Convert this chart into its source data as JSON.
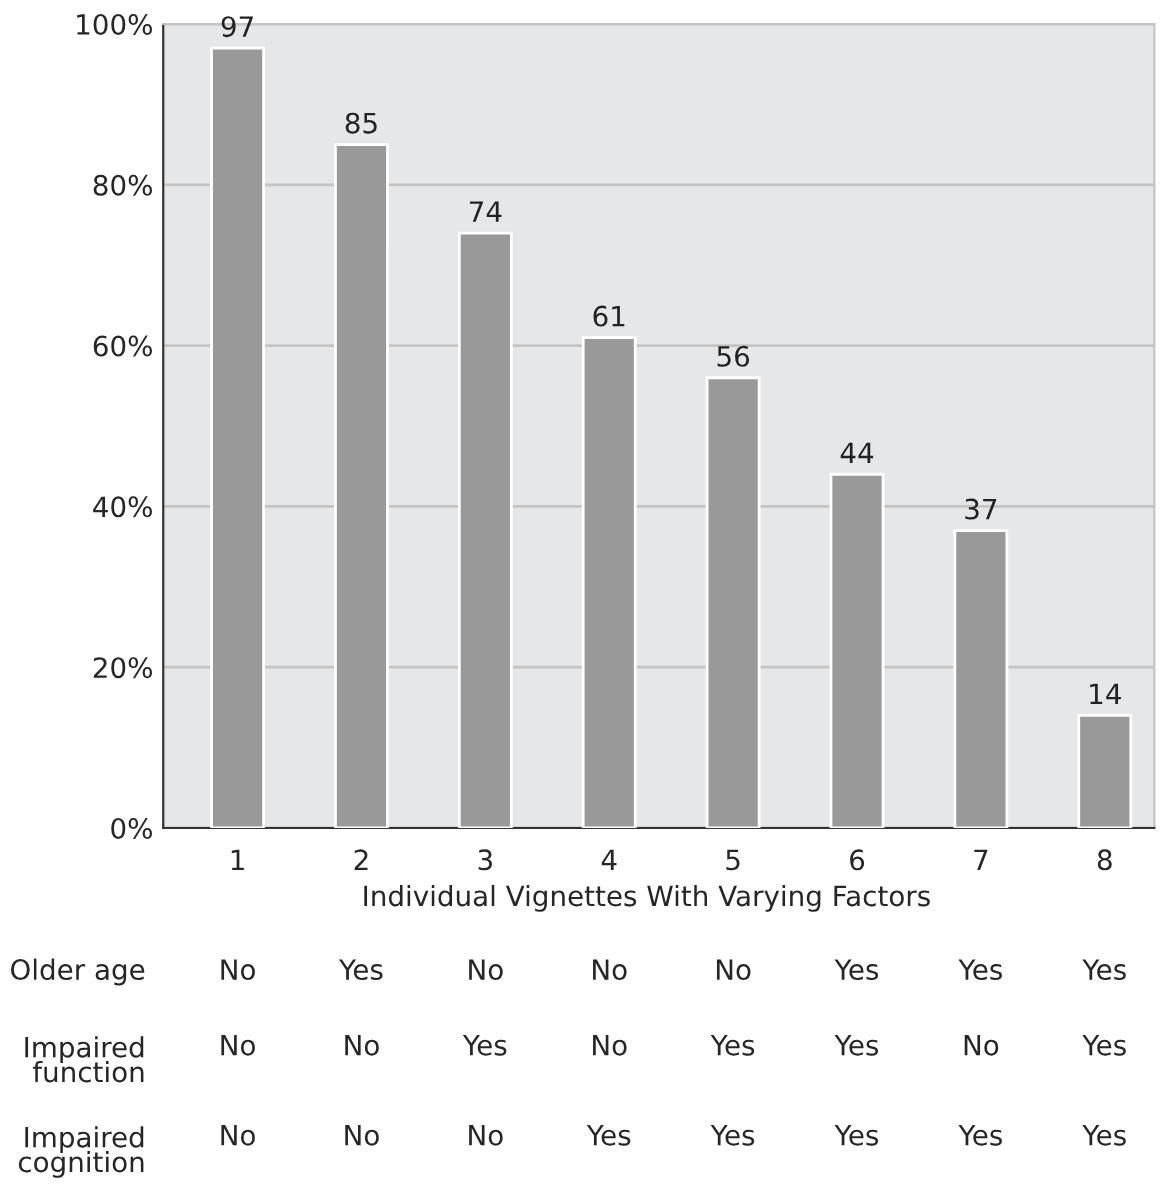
{
  "chart_data": {
    "type": "bar",
    "xlabel": "Individual Vignettes With Varying Factors",
    "categories": [
      "1",
      "2",
      "3",
      "4",
      "5",
      "6",
      "7",
      "8"
    ],
    "values": [
      97,
      85,
      74,
      61,
      56,
      44,
      37,
      14
    ],
    "color": "#999999",
    "data_labels": true,
    "ylim": [
      0,
      100
    ],
    "yticks": [
      {
        "value": 0,
        "label": "0%"
      },
      {
        "value": 20,
        "label": "20%"
      },
      {
        "value": 40,
        "label": "40%"
      },
      {
        "value": 60,
        "label": "60%"
      },
      {
        "value": 80,
        "label": "80%"
      },
      {
        "value": 100,
        "label": "100%"
      }
    ],
    "grid": "y",
    "annotations": [
      "Older age",
      "No",
      "Yes",
      "No",
      "No",
      "No",
      "Yes",
      "Yes",
      "Yes",
      "Impaired\nfunction",
      "No",
      "No",
      "Yes",
      "No",
      "Yes",
      "Yes",
      "No",
      "Yes",
      "Impaired\ncognition",
      "No",
      "No",
      "No",
      "Yes",
      "Yes",
      "Yes",
      "Yes",
      "Yes"
    ]
  }
}
